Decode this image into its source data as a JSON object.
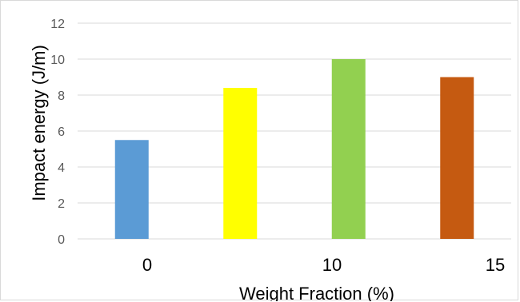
{
  "chart_data": {
    "type": "bar",
    "title": "",
    "xlabel": "Weight Fraction (%)",
    "ylabel": "Impact energy (J/m)",
    "categories": [
      "0",
      "",
      "10",
      "15"
    ],
    "values": [
      5.5,
      8.4,
      10.0,
      9.0
    ],
    "colors": [
      "#5b9bd5",
      "#ffff00",
      "#92d050",
      "#c55a11"
    ],
    "ylim": [
      0,
      12
    ],
    "yticks": [
      0,
      2,
      4,
      6,
      8,
      10,
      12
    ],
    "grid": true,
    "legend": "none"
  }
}
